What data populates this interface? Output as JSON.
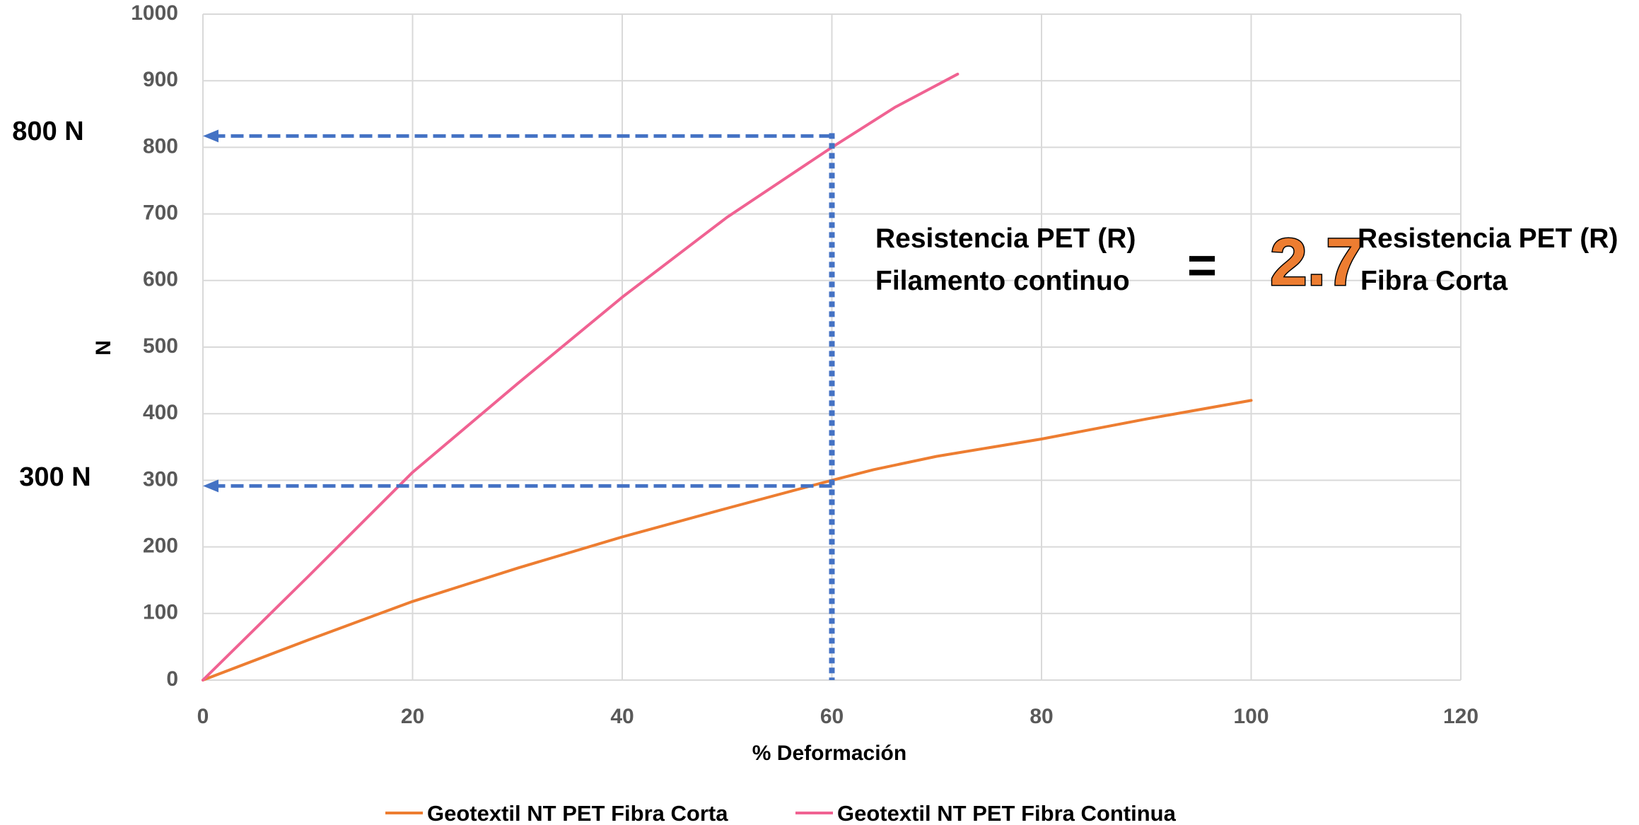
{
  "chart_data": {
    "type": "line",
    "xlabel": "% Deformación",
    "ylabel": "N",
    "xlim": [
      0,
      120
    ],
    "ylim": [
      0,
      1000
    ],
    "x_ticks": [
      0,
      20,
      40,
      60,
      80,
      100,
      120
    ],
    "y_ticks": [
      0,
      100,
      200,
      300,
      400,
      500,
      600,
      700,
      800,
      900,
      1000
    ],
    "grid": true,
    "legend_position": "bottom",
    "series": [
      {
        "name": "Geotextil NT PET Fibra Corta",
        "color": "#ED7D31",
        "x": [
          0,
          10,
          20,
          30,
          40,
          50,
          60,
          64,
          70,
          80,
          90,
          100
        ],
        "y": [
          0,
          60,
          118,
          168,
          215,
          258,
          300,
          316,
          336,
          362,
          392,
          420
        ]
      },
      {
        "name": "Geotextil NT PET Fibra Continua",
        "color": "#F06292",
        "x": [
          0,
          10,
          20,
          30,
          40,
          50,
          60,
          66,
          72
        ],
        "y": [
          0,
          155,
          312,
          445,
          575,
          695,
          800,
          860,
          910
        ]
      }
    ],
    "reference_lines": {
      "x": 60,
      "y_values": [
        300,
        800
      ],
      "color": "#4472C4"
    },
    "annotations": {
      "label_high": "800 N",
      "label_low": "300 N",
      "numerator_line1": "Resistencia PET (R)",
      "numerator_line2": "Filamento continuo",
      "equals": "=",
      "ratio": "2.7",
      "denominator_line1": "Resistencia PET (R)",
      "denominator_line2": "Fibra Corta"
    }
  }
}
